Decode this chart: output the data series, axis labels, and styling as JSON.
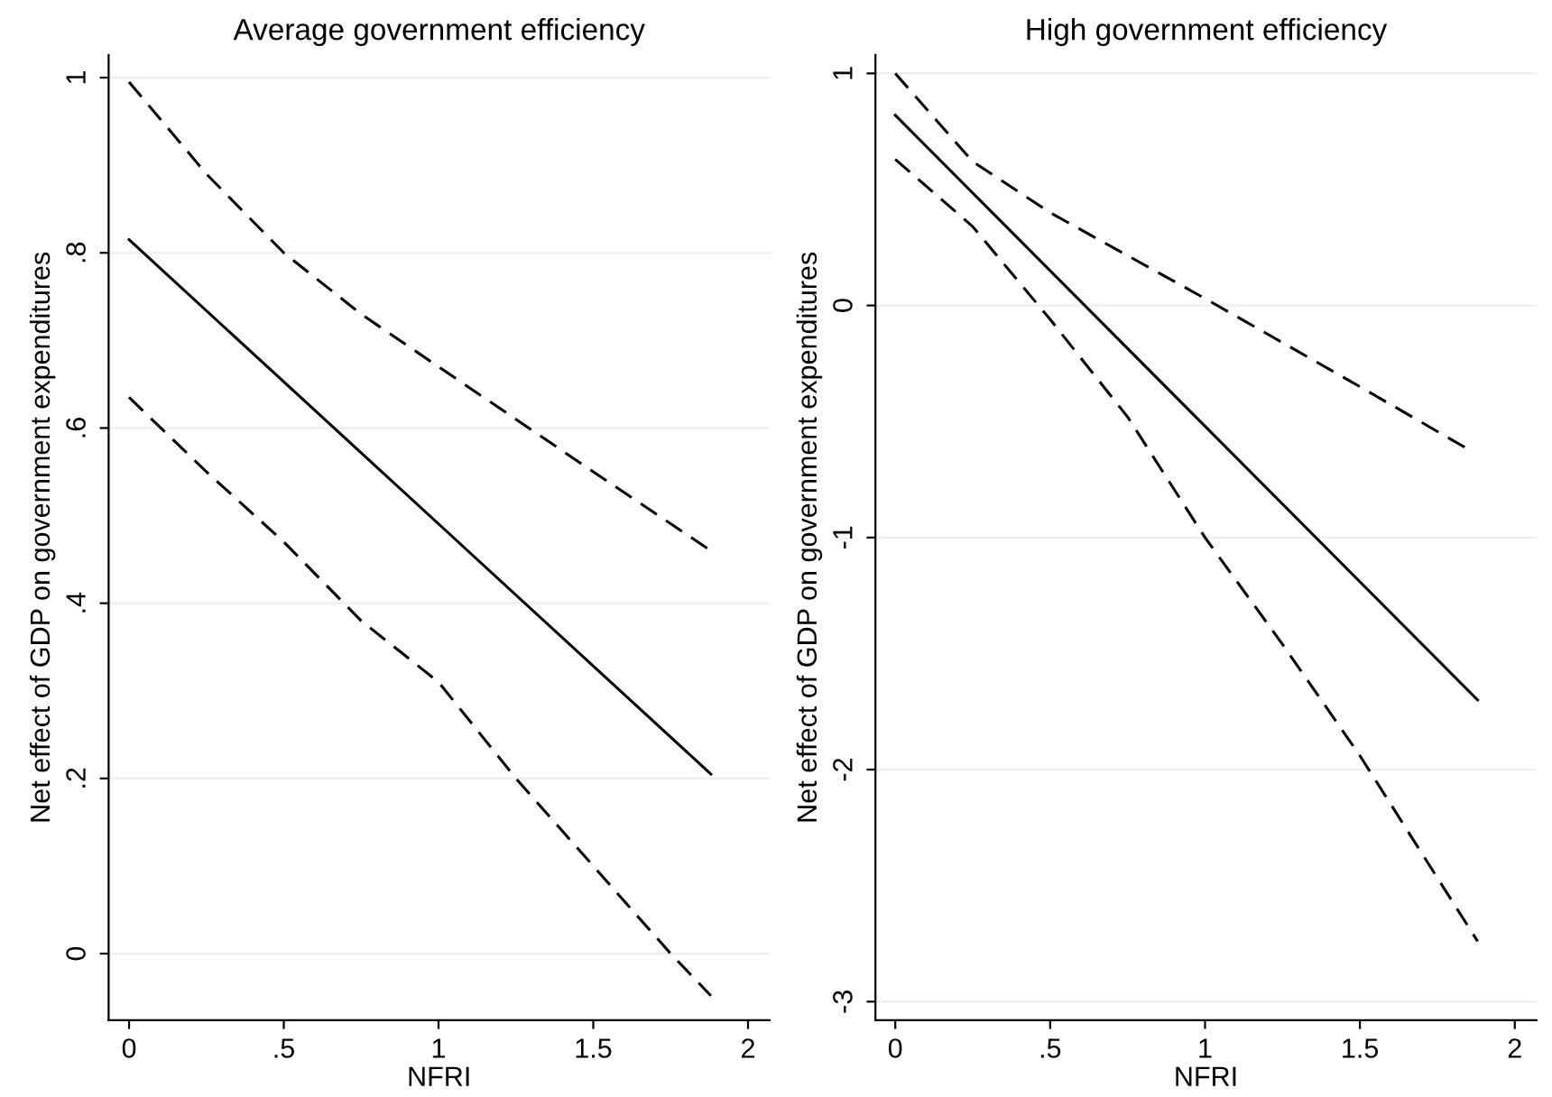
{
  "chart_data": [
    {
      "type": "line",
      "title": "Average government efficiency",
      "xlabel": "NFRI",
      "ylabel": "Net effect of GDP on government expenditures",
      "xlim": [
        -0.066,
        2.07
      ],
      "xticks": [
        0,
        {
          "value": 0.5,
          "label": ".5"
        },
        1,
        1.5,
        2
      ],
      "ylim": [
        -0.076,
        1.026
      ],
      "yticks": [
        0,
        {
          "value": 0.2,
          "label": ".2"
        },
        {
          "value": 0.4,
          "label": ".4"
        },
        {
          "value": 0.6,
          "label": ".6"
        },
        {
          "value": 0.8,
          "label": ".8"
        },
        1
      ],
      "grid": "y",
      "legend": false,
      "series": [
        {
          "color": "#000000",
          "line_style": "solid",
          "x": [
            0,
            1.88
          ],
          "values": [
            0.815,
            0.205
          ]
        },
        {
          "color": "#000000",
          "line_style": "dashed",
          "x": [
            0,
            0.25,
            0.5,
            0.75,
            1,
            1.25,
            1.5,
            1.88
          ],
          "values": [
            0.995,
            0.89,
            0.8,
            0.73,
            0.67,
            0.61,
            0.55,
            0.46
          ]
        },
        {
          "color": "#000000",
          "line_style": "dashed",
          "x": [
            0,
            0.25,
            0.5,
            0.75,
            1,
            1.25,
            1.5,
            1.75,
            1.88
          ],
          "values": [
            0.635,
            0.55,
            0.47,
            0.38,
            0.31,
            0.2,
            0.1,
            0.0,
            -0.048
          ]
        }
      ]
    },
    {
      "type": "line",
      "title": "High government efficiency",
      "xlabel": "NFRI",
      "ylabel": "Net effect of GDP on government expenditures",
      "xlim": [
        -0.064,
        2.07
      ],
      "xticks": [
        0,
        {
          "value": 0.5,
          "label": ".5"
        },
        1,
        1.5,
        2
      ],
      "ylim": [
        -3.08,
        1.08
      ],
      "yticks": [
        {
          "value": -3,
          "label": "-3"
        },
        {
          "value": -2,
          "label": "-2"
        },
        {
          "value": -1,
          "label": "-1"
        },
        0,
        1
      ],
      "grid": "y",
      "legend": false,
      "series": [
        {
          "color": "#000000",
          "line_style": "solid",
          "x": [
            0,
            1.88
          ],
          "values": [
            0.82,
            -1.7
          ]
        },
        {
          "color": "#000000",
          "line_style": "dashed",
          "x": [
            0,
            0.25,
            0.5,
            1,
            1.5,
            1.85
          ],
          "values": [
            1.0,
            0.62,
            0.4,
            0.03,
            -0.35,
            -0.62
          ]
        },
        {
          "color": "#000000",
          "line_style": "dashed",
          "x": [
            0,
            0.25,
            0.5,
            0.75,
            1,
            1.25,
            1.5,
            1.88
          ],
          "values": [
            0.63,
            0.34,
            -0.06,
            -0.48,
            -1.0,
            -1.46,
            -1.94,
            -2.74
          ]
        }
      ]
    }
  ]
}
